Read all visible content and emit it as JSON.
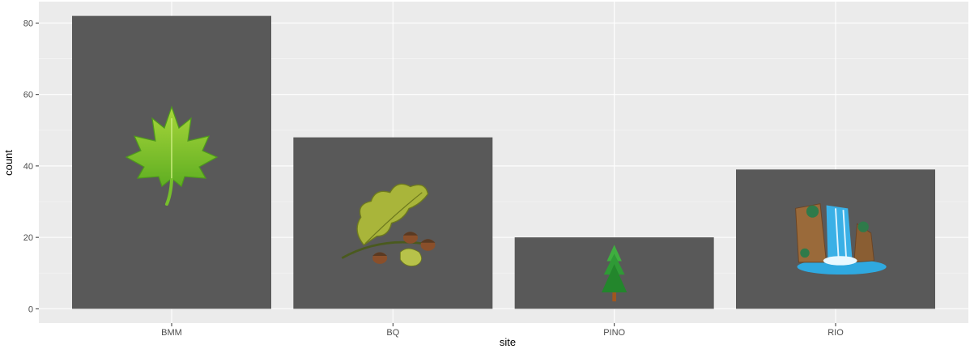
{
  "chart_data": {
    "type": "bar",
    "categories": [
      "BMM",
      "BQ",
      "PINO",
      "RIO"
    ],
    "values": [
      82,
      48,
      20,
      39
    ],
    "xlabel": "site",
    "ylabel": "count",
    "ylim": [
      -4,
      86
    ],
    "yticks": [
      0,
      20,
      40,
      60,
      80
    ],
    "grid": true,
    "bar_icons": [
      "maple-leaf-icon",
      "oak-leaf-acorn-icon",
      "pine-tree-icon",
      "waterfall-icon"
    ]
  },
  "colors": {
    "panel": "#ebebeb",
    "grid_major": "#ffffff",
    "grid_minor": "#f4f4f4",
    "bar": "#595959"
  }
}
